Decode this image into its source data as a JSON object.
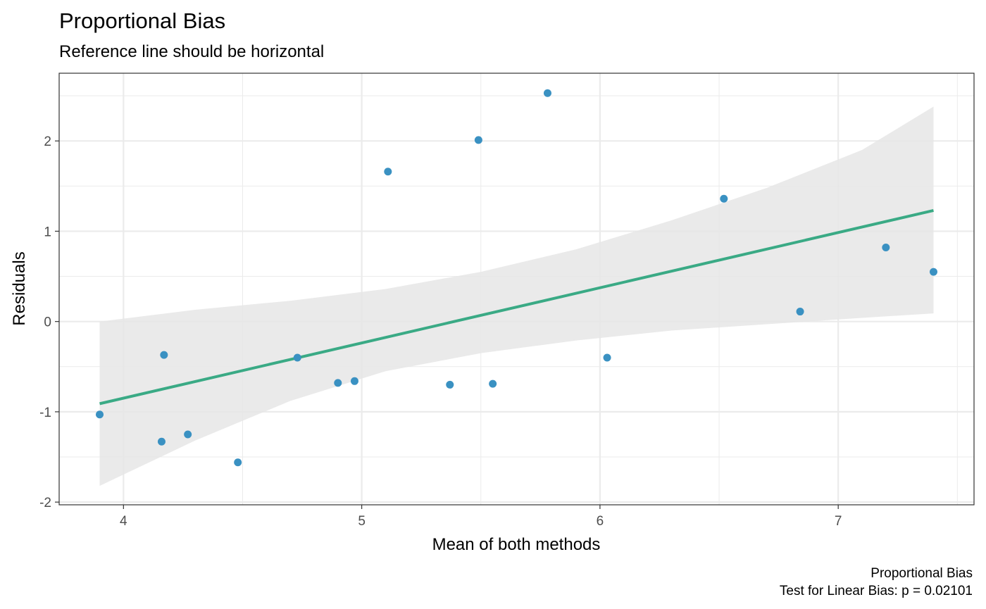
{
  "chart_data": {
    "type": "scatter",
    "title": "Proportional Bias",
    "subtitle": "Reference line should be horizontal",
    "xlabel": "Mean of both methods",
    "ylabel": "Residuals",
    "xlim": [
      3.73,
      7.57
    ],
    "ylim": [
      -2.03,
      2.75
    ],
    "x_ticks": [
      4,
      5,
      6,
      7
    ],
    "y_ticks": [
      -2,
      -1,
      0,
      1,
      2
    ],
    "x_tick_labels": [
      "4",
      "5",
      "6",
      "7"
    ],
    "y_tick_labels": [
      "-2",
      "-1",
      "0",
      "1",
      "2"
    ],
    "grid": true,
    "points": [
      {
        "x": 3.9,
        "y": -1.03
      },
      {
        "x": 4.16,
        "y": -1.33
      },
      {
        "x": 4.17,
        "y": -0.37
      },
      {
        "x": 4.27,
        "y": -1.25
      },
      {
        "x": 4.48,
        "y": -1.56
      },
      {
        "x": 4.73,
        "y": -0.4
      },
      {
        "x": 4.9,
        "y": -0.68
      },
      {
        "x": 4.97,
        "y": -0.66
      },
      {
        "x": 5.11,
        "y": 1.66
      },
      {
        "x": 5.37,
        "y": -0.7
      },
      {
        "x": 5.49,
        "y": 2.01
      },
      {
        "x": 5.55,
        "y": -0.69
      },
      {
        "x": 5.78,
        "y": 2.53
      },
      {
        "x": 6.03,
        "y": -0.4
      },
      {
        "x": 6.52,
        "y": 1.36
      },
      {
        "x": 6.84,
        "y": 0.11
      },
      {
        "x": 7.2,
        "y": 0.82
      },
      {
        "x": 7.4,
        "y": 0.55
      }
    ],
    "fit_line": {
      "x": [
        3.9,
        7.4
      ],
      "y": [
        -0.91,
        1.23
      ]
    },
    "confidence_band": {
      "x": [
        3.9,
        4.3,
        4.7,
        5.1,
        5.5,
        5.9,
        6.3,
        6.7,
        7.1,
        7.4
      ],
      "upper": [
        0.0,
        0.13,
        0.23,
        0.36,
        0.55,
        0.8,
        1.12,
        1.48,
        1.9,
        2.38
      ],
      "lower": [
        -1.82,
        -1.32,
        -0.88,
        -0.55,
        -0.35,
        -0.21,
        -0.1,
        -0.03,
        0.04,
        0.09
      ]
    },
    "caption": [
      "Proportional Bias",
      "Test for Linear Bias: p = 0.02101"
    ],
    "colors": {
      "points": "#3a91c2",
      "fit_line": "#3aaa85",
      "band": "#e6e6e6",
      "grid": "#ebebeb",
      "panel_border": "#333333"
    }
  }
}
